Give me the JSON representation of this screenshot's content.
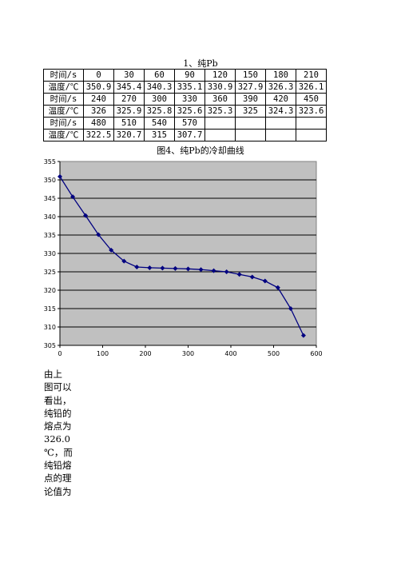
{
  "table": {
    "title": "1、纯Pb",
    "rows": [
      {
        "label": "时间/s",
        "cells": [
          "0",
          "30",
          "60",
          "90",
          "120",
          "150",
          "180",
          "210"
        ]
      },
      {
        "label": "温度/℃",
        "cells": [
          "350.9",
          "345.4",
          "340.3",
          "335.1",
          "330.9",
          "327.9",
          "326.3",
          "326.1"
        ]
      },
      {
        "label": "时间/s",
        "cells": [
          "240",
          "270",
          "300",
          "330",
          "360",
          "390",
          "420",
          "450"
        ]
      },
      {
        "label": "温度/℃",
        "cells": [
          "326",
          "325.9",
          "325.8",
          "325.6",
          "325.3",
          "325",
          "324.3",
          "323.6"
        ]
      },
      {
        "label": "时间/s",
        "cells": [
          "480",
          "510",
          "540",
          "570",
          "",
          "",
          "",
          ""
        ]
      },
      {
        "label": "温度/℃",
        "cells": [
          "322.5",
          "320.7",
          "315",
          "307.7",
          "",
          "",
          "",
          ""
        ]
      }
    ]
  },
  "chart_title": "图4、纯Pb的冷却曲线",
  "chart_data": {
    "type": "line",
    "title": "图4、纯Pb的冷却曲线",
    "xlabel": "",
    "ylabel": "",
    "x": [
      0,
      30,
      60,
      90,
      120,
      150,
      180,
      210,
      240,
      270,
      300,
      330,
      360,
      390,
      420,
      450,
      480,
      510,
      540,
      570
    ],
    "series": [
      {
        "values": [
          350.9,
          345.4,
          340.3,
          335.1,
          330.9,
          327.9,
          326.3,
          326.1,
          326,
          325.9,
          325.8,
          325.6,
          325.3,
          325,
          324.3,
          323.6,
          322.5,
          320.7,
          315,
          307.7
        ]
      }
    ],
    "xlim": [
      0,
      600
    ],
    "ylim": [
      305,
      355
    ],
    "x_ticks": [
      "0",
      "100",
      "200",
      "300",
      "400",
      "500",
      "600"
    ],
    "y_ticks": [
      "305",
      "310",
      "315",
      "320",
      "325",
      "330",
      "335",
      "340",
      "345",
      "350",
      "355"
    ],
    "grid": "horizontal",
    "legend": "none",
    "colors": {
      "plot_bg": "#c0c0c0",
      "line": "#000080",
      "grid": "#000000"
    }
  },
  "caption_lines": [
    "由上",
    "图可以",
    "看出，",
    "纯铅的",
    "熔点为",
    "326.0",
    "℃，而",
    "纯铅熔",
    "点的理",
    "论值为"
  ]
}
